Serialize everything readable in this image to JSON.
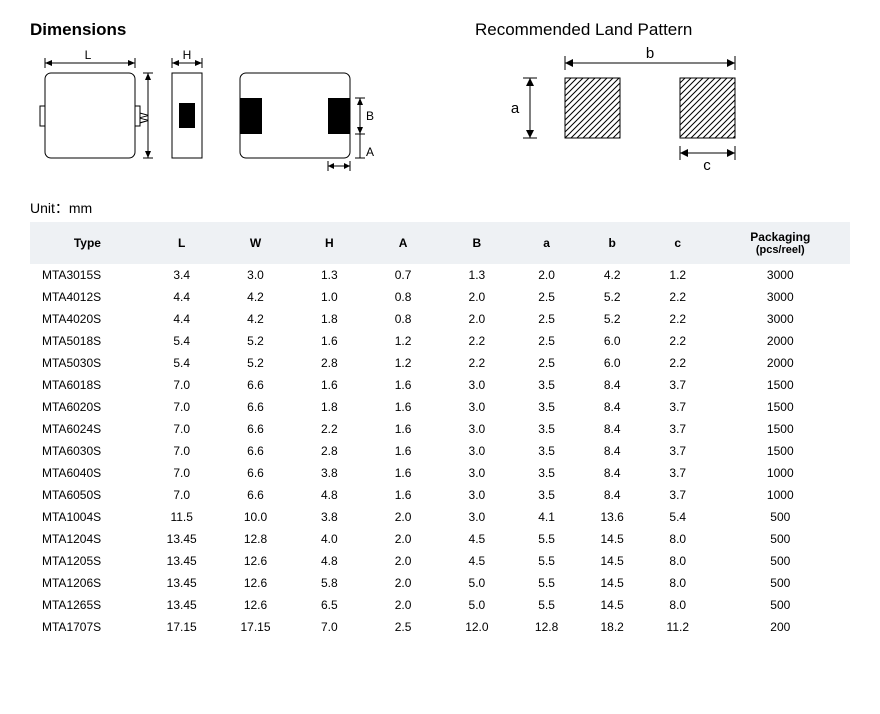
{
  "titles": {
    "dimensions": "Dimensions",
    "land_pattern": "Recommended Land Pattern"
  },
  "unit_label": "Unit：mm",
  "diagrams": {
    "stroke_color": "#000000",
    "fill_pad": "#000000",
    "hatch_color": "#000000",
    "labels": {
      "L": "L",
      "W": "W",
      "H": "H",
      "A": "A",
      "B": "B",
      "a": "a",
      "b": "b",
      "c": "c"
    }
  },
  "table": {
    "columns": [
      "Type",
      "L",
      "W",
      "H",
      "A",
      "B",
      "a",
      "b",
      "c"
    ],
    "packaging_header": "Packaging",
    "packaging_sub": "(pcs/reel)",
    "col_widths_pct": [
      14,
      9,
      9,
      9,
      9,
      9,
      8,
      8,
      8,
      17
    ],
    "header_bg": "#eef1f4",
    "rows": [
      [
        "MTA3015S",
        "3.4",
        "3.0",
        "1.3",
        "0.7",
        "1.3",
        "2.0",
        "4.2",
        "1.2",
        "3000"
      ],
      [
        "MTA4012S",
        "4.4",
        "4.2",
        "1.0",
        "0.8",
        "2.0",
        "2.5",
        "5.2",
        "2.2",
        "3000"
      ],
      [
        "MTA4020S",
        "4.4",
        "4.2",
        "1.8",
        "0.8",
        "2.0",
        "2.5",
        "5.2",
        "2.2",
        "3000"
      ],
      [
        "MTA5018S",
        "5.4",
        "5.2",
        "1.6",
        "1.2",
        "2.2",
        "2.5",
        "6.0",
        "2.2",
        "2000"
      ],
      [
        "MTA5030S",
        "5.4",
        "5.2",
        "2.8",
        "1.2",
        "2.2",
        "2.5",
        "6.0",
        "2.2",
        "2000"
      ],
      [
        "MTA6018S",
        "7.0",
        "6.6",
        "1.6",
        "1.6",
        "3.0",
        "3.5",
        "8.4",
        "3.7",
        "1500"
      ],
      [
        "MTA6020S",
        "7.0",
        "6.6",
        "1.8",
        "1.6",
        "3.0",
        "3.5",
        "8.4",
        "3.7",
        "1500"
      ],
      [
        "MTA6024S",
        "7.0",
        "6.6",
        "2.2",
        "1.6",
        "3.0",
        "3.5",
        "8.4",
        "3.7",
        "1500"
      ],
      [
        "MTA6030S",
        "7.0",
        "6.6",
        "2.8",
        "1.6",
        "3.0",
        "3.5",
        "8.4",
        "3.7",
        "1500"
      ],
      [
        "MTA6040S",
        "7.0",
        "6.6",
        "3.8",
        "1.6",
        "3.0",
        "3.5",
        "8.4",
        "3.7",
        "1000"
      ],
      [
        "MTA6050S",
        "7.0",
        "6.6",
        "4.8",
        "1.6",
        "3.0",
        "3.5",
        "8.4",
        "3.7",
        "1000"
      ],
      [
        "MTA1004S",
        "11.5",
        "10.0",
        "3.8",
        "2.0",
        "3.0",
        "4.1",
        "13.6",
        "5.4",
        "500"
      ],
      [
        "MTA1204S",
        "13.45",
        "12.8",
        "4.0",
        "2.0",
        "4.5",
        "5.5",
        "14.5",
        "8.0",
        "500"
      ],
      [
        "MTA1205S",
        "13.45",
        "12.6",
        "4.8",
        "2.0",
        "4.5",
        "5.5",
        "14.5",
        "8.0",
        "500"
      ],
      [
        "MTA1206S",
        "13.45",
        "12.6",
        "5.8",
        "2.0",
        "5.0",
        "5.5",
        "14.5",
        "8.0",
        "500"
      ],
      [
        "MTA1265S",
        "13.45",
        "12.6",
        "6.5",
        "2.0",
        "5.0",
        "5.5",
        "14.5",
        "8.0",
        "500"
      ],
      [
        "MTA1707S",
        "17.15",
        "17.15",
        "7.0",
        "2.5",
        "12.0",
        "12.8",
        "18.2",
        "11.2",
        "200"
      ]
    ]
  }
}
